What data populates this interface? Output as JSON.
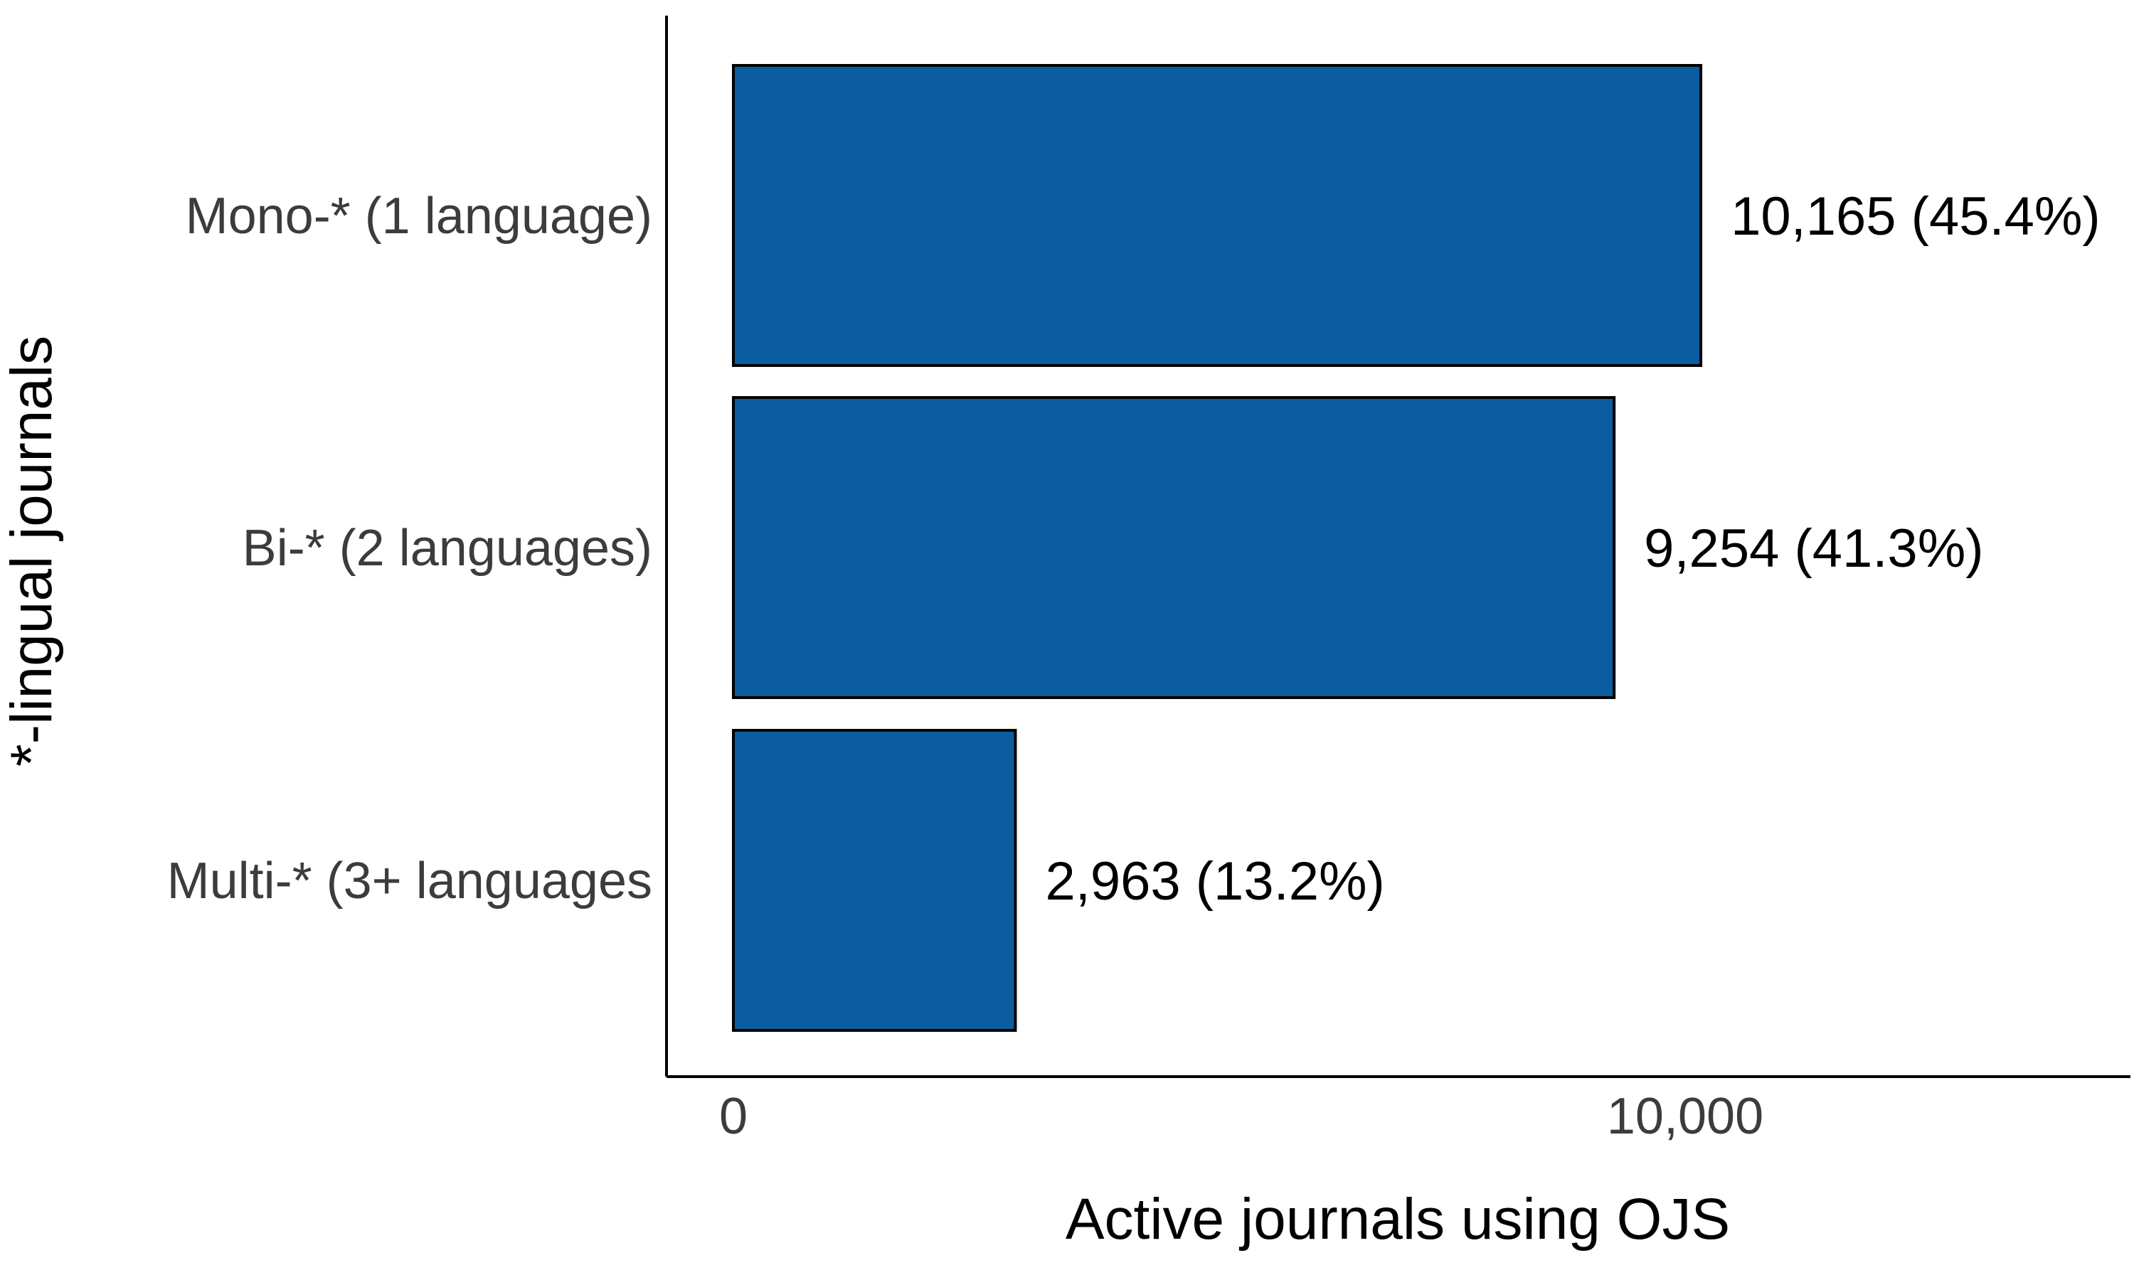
{
  "chart_data": {
    "type": "bar",
    "orientation": "horizontal",
    "categories": [
      "Mono-* (1 language)",
      "Bi-* (2 languages)",
      "Multi-* (3+ languages"
    ],
    "values": [
      10165,
      9254,
      2963
    ],
    "data_labels": [
      "10,165 (45.4%)",
      "9,254 (41.3%)",
      "2,963 (13.2%)"
    ],
    "xlabel": "Active journals using OJS",
    "ylabel": "*-lingual journals",
    "xticks": [
      0,
      10000
    ],
    "xtick_labels": [
      "0",
      "10,000"
    ],
    "xlim": [
      0,
      14500
    ],
    "grid": false,
    "legend": "none",
    "bar_color": "#0c5da0",
    "bar_outline_color": "#000000"
  }
}
